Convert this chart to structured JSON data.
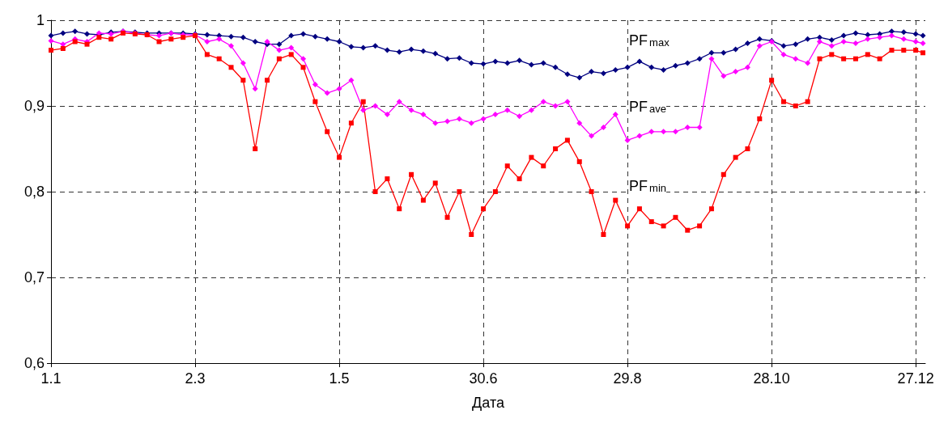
{
  "chart_data": {
    "type": "line",
    "xlabel": "Дата",
    "x": [
      "--01-01",
      "--01-06",
      "--01-11",
      "--01-16",
      "--01-21",
      "--01-26",
      "--01-31",
      "--02-05",
      "--02-10",
      "--02-15",
      "--02-20",
      "--02-25",
      "--03-02",
      "--03-07",
      "--03-12",
      "--03-17",
      "--03-22",
      "--03-27",
      "--04-01",
      "--04-06",
      "--04-11",
      "--04-16",
      "--04-21",
      "--04-26",
      "--05-01",
      "--05-06",
      "--05-11",
      "--05-16",
      "--05-21",
      "--05-26",
      "--05-31",
      "--06-05",
      "--06-10",
      "--06-15",
      "--06-20",
      "--06-25",
      "--06-30",
      "--07-05",
      "--07-10",
      "--07-15",
      "--07-20",
      "--07-25",
      "--07-30",
      "--08-04",
      "--08-09",
      "--08-14",
      "--08-19",
      "--08-24",
      "--08-29",
      "--09-03",
      "--09-08",
      "--09-13",
      "--09-18",
      "--09-23",
      "--09-28",
      "--10-03",
      "--10-08",
      "--10-13",
      "--10-18",
      "--10-23",
      "--10-28",
      "--11-02",
      "--11-07",
      "--11-12",
      "--11-17",
      "--11-22",
      "--11-27",
      "--12-02",
      "--12-07",
      "--12-12",
      "--12-17",
      "--12-22",
      "--12-27",
      "--12-30"
    ],
    "series": [
      {
        "name": "PF$_{max}$",
        "color": "#000080",
        "marker": "diamond",
        "values": [
          0.982,
          0.985,
          0.987,
          0.984,
          0.983,
          0.986,
          0.987,
          0.986,
          0.985,
          0.985,
          0.985,
          0.985,
          0.984,
          0.983,
          0.982,
          0.981,
          0.98,
          0.975,
          0.972,
          0.972,
          0.982,
          0.984,
          0.981,
          0.978,
          0.975,
          0.969,
          0.968,
          0.97,
          0.965,
          0.963,
          0.966,
          0.964,
          0.961,
          0.955,
          0.956,
          0.95,
          0.949,
          0.952,
          0.95,
          0.953,
          0.948,
          0.95,
          0.945,
          0.937,
          0.933,
          0.94,
          0.938,
          0.942,
          0.945,
          0.952,
          0.945,
          0.942,
          0.947,
          0.95,
          0.955,
          0.962,
          0.962,
          0.966,
          0.973,
          0.978,
          0.976,
          0.97,
          0.972,
          0.978,
          0.98,
          0.977,
          0.982,
          0.985,
          0.983,
          0.984,
          0.987,
          0.986,
          0.984,
          0.982
        ]
      },
      {
        "name": "PF$_{ave}$",
        "color": "#ff00ff",
        "marker": "diamond",
        "values": [
          0.976,
          0.972,
          0.978,
          0.975,
          0.985,
          0.984,
          0.987,
          0.985,
          0.983,
          0.982,
          0.985,
          0.983,
          0.983,
          0.975,
          0.978,
          0.97,
          0.95,
          0.92,
          0.975,
          0.965,
          0.968,
          0.955,
          0.925,
          0.915,
          0.92,
          0.93,
          0.895,
          0.9,
          0.89,
          0.905,
          0.895,
          0.89,
          0.88,
          0.882,
          0.885,
          0.88,
          0.885,
          0.89,
          0.895,
          0.888,
          0.895,
          0.905,
          0.9,
          0.905,
          0.88,
          0.865,
          0.875,
          0.89,
          0.86,
          0.865,
          0.87,
          0.87,
          0.87,
          0.875,
          0.875,
          0.955,
          0.935,
          0.94,
          0.945,
          0.97,
          0.975,
          0.96,
          0.955,
          0.95,
          0.975,
          0.97,
          0.975,
          0.973,
          0.978,
          0.98,
          0.982,
          0.978,
          0.975,
          0.973
        ]
      },
      {
        "name": "PF$_{min}$",
        "color": "#ff0000",
        "marker": "square",
        "values": [
          0.965,
          0.967,
          0.975,
          0.972,
          0.98,
          0.978,
          0.985,
          0.984,
          0.983,
          0.975,
          0.978,
          0.98,
          0.982,
          0.96,
          0.955,
          0.945,
          0.93,
          0.85,
          0.93,
          0.955,
          0.96,
          0.945,
          0.905,
          0.87,
          0.84,
          0.88,
          0.905,
          0.8,
          0.815,
          0.78,
          0.82,
          0.79,
          0.81,
          0.77,
          0.8,
          0.75,
          0.78,
          0.8,
          0.83,
          0.815,
          0.84,
          0.83,
          0.85,
          0.86,
          0.835,
          0.8,
          0.75,
          0.79,
          0.76,
          0.78,
          0.765,
          0.76,
          0.77,
          0.755,
          0.76,
          0.78,
          0.82,
          0.84,
          0.85,
          0.885,
          0.93,
          0.905,
          0.9,
          0.905,
          0.955,
          0.96,
          0.955,
          0.955,
          0.96,
          0.955,
          0.965,
          0.965,
          0.965,
          0.962
        ]
      }
    ],
    "xlim": [
      "--01-01",
      "--12-31"
    ],
    "xticks": [
      {
        "value": "--01-01",
        "label": "1.1"
      },
      {
        "value": "--03-02",
        "label": "2.3"
      },
      {
        "value": "--05-01",
        "label": "1.5"
      },
      {
        "value": "--06-30",
        "label": "30.6"
      },
      {
        "value": "--08-29",
        "label": "29.8"
      },
      {
        "value": "--10-28",
        "label": "28.10"
      },
      {
        "value": "--12-27",
        "label": "27.12"
      }
    ],
    "ylim": [
      0.6,
      1
    ],
    "yticks": [
      {
        "value": 0.6,
        "label": "0,6"
      },
      {
        "value": 0.7,
        "label": "0,7"
      },
      {
        "value": 0.8,
        "label": "0,8"
      },
      {
        "value": 0.9,
        "label": "0,9"
      },
      1
    ],
    "grid": true,
    "legend": false,
    "line_style": "solid"
  }
}
